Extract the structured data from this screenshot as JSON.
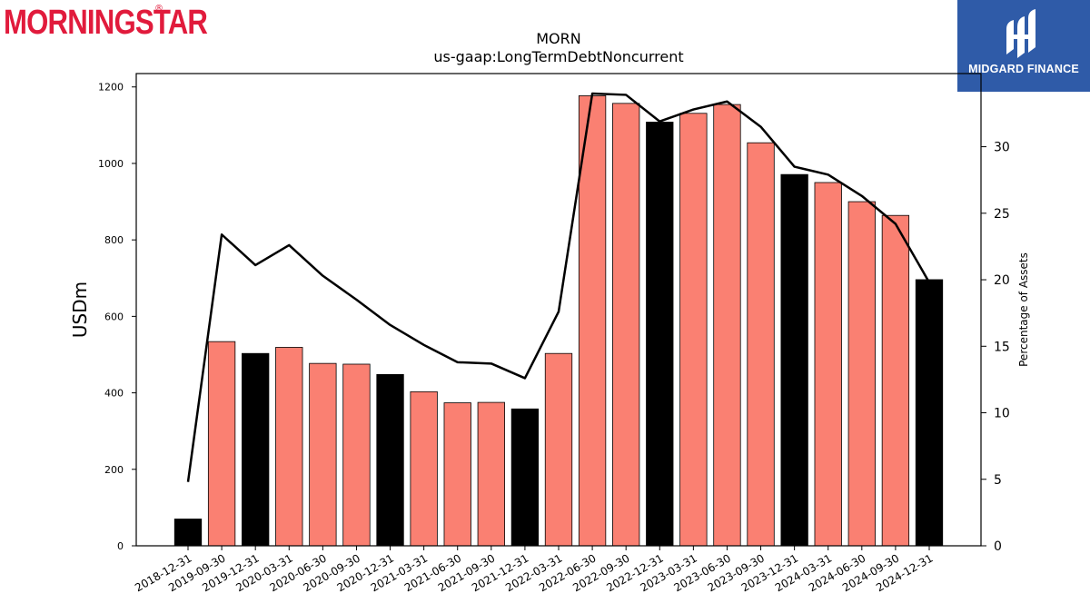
{
  "branding": {
    "left_logo_text": "MORNINGSTAR",
    "left_logo_reg": "®",
    "right_logo_text": "MIDGARD FINANCE",
    "right_logo_bg": "#2f5ba8",
    "left_logo_color": "#e11b3c"
  },
  "chart_data": {
    "type": "bar",
    "title": "MORN",
    "subtitle": "us-gaap:LongTermDebtNoncurrent",
    "ylabel": "USDm",
    "y2label": "Percentage of Assets",
    "ylim": [
      0,
      1235
    ],
    "y2lim": [
      0,
      35.5
    ],
    "yticks": [
      0,
      200,
      400,
      600,
      800,
      1000,
      1200
    ],
    "y2ticks": [
      0,
      5,
      10,
      15,
      20,
      25,
      30
    ],
    "categories": [
      "2018-12-31",
      "2019-09-30",
      "2019-12-31",
      "2020-03-31",
      "2020-06-30",
      "2020-09-30",
      "2020-12-31",
      "2021-03-31",
      "2021-06-30",
      "2021-09-30",
      "2021-12-31",
      "2022-03-31",
      "2022-06-30",
      "2022-09-30",
      "2022-12-31",
      "2023-03-31",
      "2023-06-30",
      "2023-09-30",
      "2023-12-31",
      "2024-03-31",
      "2024-06-30",
      "2024-09-30",
      "2024-12-31"
    ],
    "series": [
      {
        "type": "bar",
        "values": [
          70,
          534,
          503,
          519,
          477,
          475,
          448,
          403,
          374,
          375,
          358,
          503,
          1177,
          1157,
          1108,
          1131,
          1154,
          1054,
          971,
          950,
          900,
          864,
          696
        ],
        "colors": [
          "#000000",
          "#fa8072",
          "#000000",
          "#fa8072",
          "#fa8072",
          "#fa8072",
          "#000000",
          "#fa8072",
          "#fa8072",
          "#fa8072",
          "#000000",
          "#fa8072",
          "#fa8072",
          "#fa8072",
          "#000000",
          "#fa8072",
          "#fa8072",
          "#fa8072",
          "#000000",
          "#fa8072",
          "#fa8072",
          "#fa8072",
          "#000000"
        ]
      },
      {
        "type": "line",
        "axis": "right",
        "values": [
          4.8,
          23.4,
          21.1,
          22.6,
          20.3,
          18.5,
          16.6,
          15.1,
          13.8,
          13.7,
          12.6,
          17.6,
          34.0,
          33.9,
          31.9,
          32.8,
          33.4,
          31.5,
          28.5,
          27.9,
          26.3,
          24.2,
          19.8
        ],
        "color": "#000000"
      }
    ]
  }
}
